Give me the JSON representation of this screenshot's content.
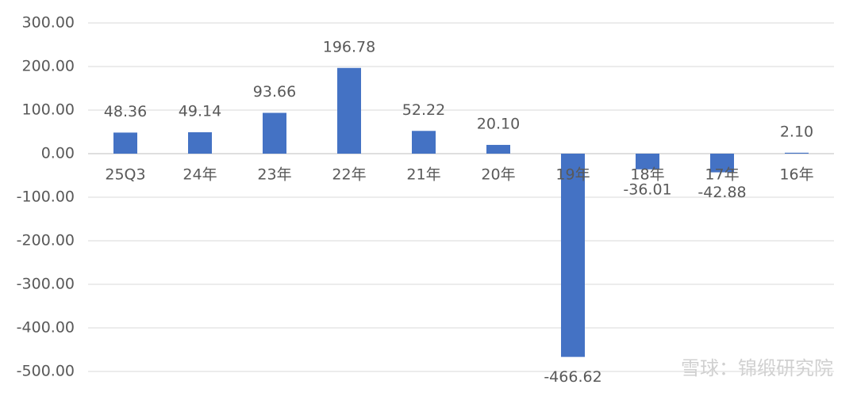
{
  "chart_data": {
    "type": "bar",
    "categories": [
      "25Q3",
      "24年",
      "23年",
      "22年",
      "21年",
      "20年",
      "19年",
      "18年",
      "17年",
      "16年"
    ],
    "values": [
      48.36,
      49.14,
      93.66,
      196.78,
      52.22,
      20.1,
      -466.62,
      -36.01,
      -42.88,
      2.1
    ],
    "value_labels": [
      "48.36",
      "49.14",
      "93.66",
      "196.78",
      "52.22",
      "20.10",
      "-466.62",
      "-36.01",
      "-42.88",
      "2.10"
    ],
    "color": "#4472c4",
    "ylim": [
      -500,
      300
    ],
    "yticks": [
      {
        "value": -500,
        "label": "-500.00"
      },
      {
        "value": -400,
        "label": "-400.00"
      },
      {
        "value": -300,
        "label": "-300.00"
      },
      {
        "value": -200,
        "label": "-200.00"
      },
      {
        "value": -100,
        "label": "-100.00"
      },
      {
        "value": 0,
        "label": "0.00"
      },
      {
        "value": 100,
        "label": "100.00"
      },
      {
        "value": 200,
        "label": "200.00"
      },
      {
        "value": 300,
        "label": "300.00"
      }
    ],
    "grid": true
  },
  "watermark": "雪球：锦缎研究院"
}
